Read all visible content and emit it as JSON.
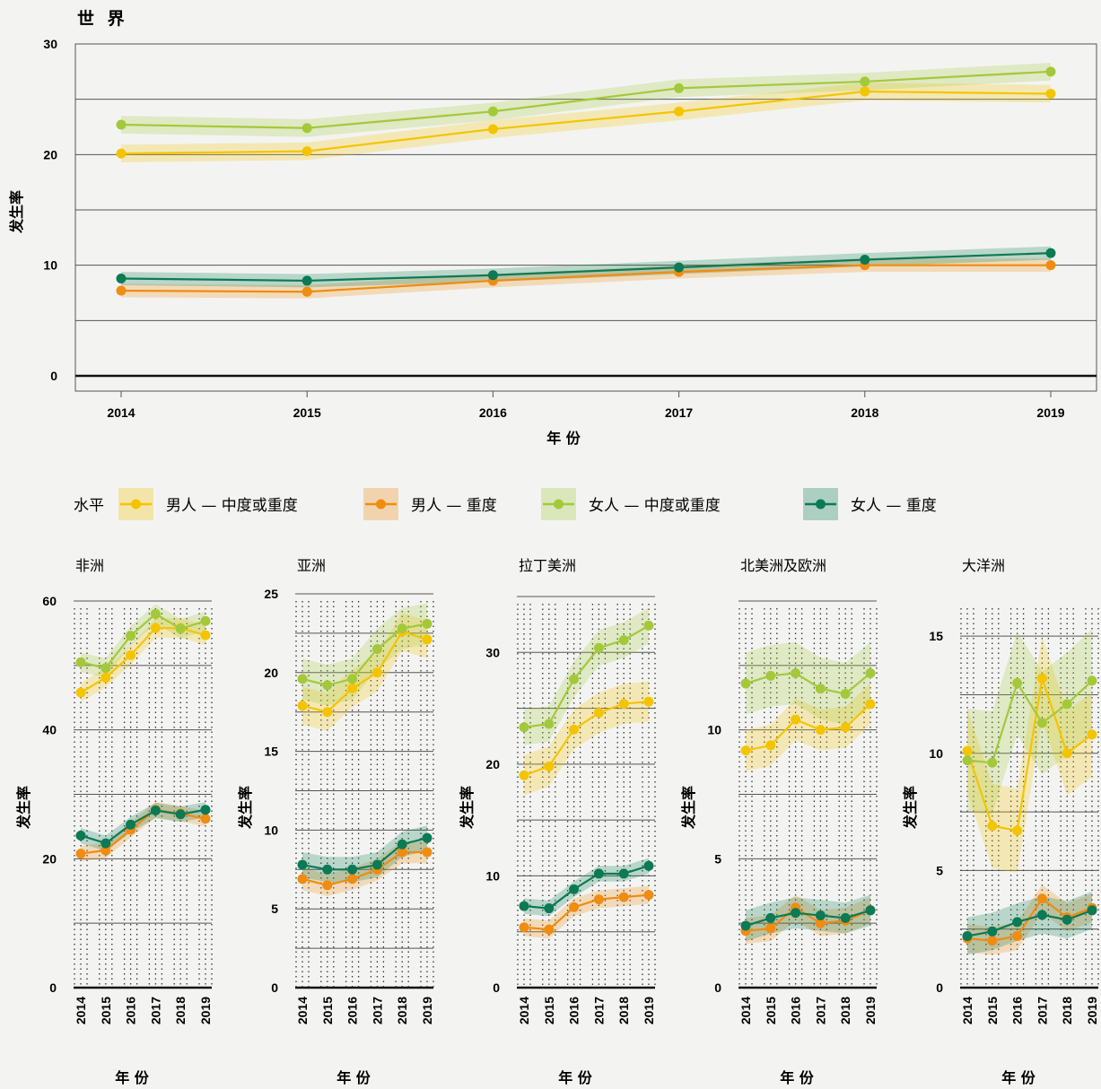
{
  "colors": {
    "men_mod": "#f5c400",
    "men_sev": "#ef8c11",
    "women_mod": "#a3c93a",
    "women_sev": "#0b7a55"
  },
  "legend": {
    "title": "水平",
    "items": [
      {
        "key": "men_mod",
        "label": "男人 — 中度或重度"
      },
      {
        "key": "men_sev",
        "label": "男人 — 重度"
      },
      {
        "key": "women_mod",
        "label": "女人 — 中度或重度"
      },
      {
        "key": "women_sev",
        "label": "女人 — 重度"
      }
    ]
  },
  "chart_data": [
    {
      "type": "line",
      "title": "世 界",
      "xlabel": "年 份",
      "ylabel": "发生率",
      "x": [
        "2014",
        "2015",
        "2016",
        "2017",
        "2018",
        "2019"
      ],
      "yticks": [
        0,
        10,
        20,
        30
      ],
      "ylim": [
        0,
        30
      ],
      "series": [
        {
          "key": "men_mod",
          "name": "男人 — 中度或重度",
          "values": [
            20.1,
            20.3,
            22.3,
            23.9,
            25.7,
            25.5
          ],
          "band": 0.8
        },
        {
          "key": "men_sev",
          "name": "男人 — 重度",
          "values": [
            7.7,
            7.6,
            8.6,
            9.4,
            10.0,
            10.0
          ],
          "band": 0.6
        },
        {
          "key": "women_mod",
          "name": "女人 — 中度或重度",
          "values": [
            22.7,
            22.4,
            23.9,
            26.0,
            26.6,
            27.5
          ],
          "band": 0.8
        },
        {
          "key": "women_sev",
          "name": "女人 — 重度",
          "values": [
            8.8,
            8.6,
            9.1,
            9.8,
            10.5,
            11.1
          ],
          "band": 0.6
        }
      ]
    },
    {
      "type": "line",
      "title": "非洲",
      "xlabel": "年 份",
      "ylabel": "发生率",
      "x": [
        "2014",
        "2015",
        "2016",
        "2017",
        "2018",
        "2019"
      ],
      "yticks": [
        0,
        20,
        40,
        60
      ],
      "ylim": [
        0,
        60
      ],
      "series": [
        {
          "key": "men_mod",
          "name": "男人 — 中度或重度",
          "values": [
            45.8,
            48.1,
            51.6,
            55.8,
            55.8,
            54.7
          ],
          "band": 1.5
        },
        {
          "key": "men_sev",
          "name": "男人 — 重度",
          "values": [
            20.8,
            21.3,
            24.5,
            27.6,
            27.0,
            26.2
          ],
          "band": 1.2
        },
        {
          "key": "women_mod",
          "name": "女人 — 中度或重度",
          "values": [
            50.5,
            49.6,
            54.6,
            58.0,
            55.7,
            56.9
          ],
          "band": 1.5
        },
        {
          "key": "women_sev",
          "name": "女人 — 重度",
          "values": [
            23.6,
            22.4,
            25.3,
            27.5,
            26.9,
            27.6
          ],
          "band": 1.2
        }
      ]
    },
    {
      "type": "line",
      "title": "亚洲",
      "xlabel": "年 份",
      "ylabel": "发生率",
      "x": [
        "2014",
        "2015",
        "2016",
        "2017",
        "2018",
        "2019"
      ],
      "yticks": [
        0,
        5,
        10,
        15,
        20,
        25
      ],
      "ylim": [
        0,
        25
      ],
      "series": [
        {
          "key": "men_mod",
          "name": "男人 — 中度或重度",
          "values": [
            17.9,
            17.5,
            19.0,
            20.0,
            22.6,
            22.1
          ],
          "band": 1.2
        },
        {
          "key": "men_sev",
          "name": "男人 — 重度",
          "values": [
            6.9,
            6.5,
            6.9,
            7.5,
            8.6,
            8.6
          ],
          "band": 0.7
        },
        {
          "key": "women_mod",
          "name": "女人 — 中度或重度",
          "values": [
            19.6,
            19.2,
            19.6,
            21.5,
            22.8,
            23.1
          ],
          "band": 1.3
        },
        {
          "key": "women_sev",
          "name": "女人 — 重度",
          "values": [
            7.8,
            7.5,
            7.5,
            7.8,
            9.1,
            9.5
          ],
          "band": 0.8
        }
      ]
    },
    {
      "type": "line",
      "title": "拉丁美洲",
      "xlabel": "年 份",
      "ylabel": "发生率",
      "x": [
        "2014",
        "2015",
        "2016",
        "2017",
        "2018",
        "2019"
      ],
      "yticks": [
        0,
        10,
        20,
        30
      ],
      "ylim": [
        0,
        35
      ],
      "series": [
        {
          "key": "men_mod",
          "name": "男人 — 中度或重度",
          "values": [
            19.0,
            19.8,
            23.1,
            24.6,
            25.4,
            25.6
          ],
          "band": 1.8
        },
        {
          "key": "men_sev",
          "name": "男人 — 重度",
          "values": [
            5.4,
            5.2,
            7.2,
            7.9,
            8.1,
            8.3
          ],
          "band": 0.8
        },
        {
          "key": "women_mod",
          "name": "女人 — 中度或重度",
          "values": [
            23.3,
            23.6,
            27.6,
            30.4,
            31.1,
            32.4
          ],
          "band": 1.6
        },
        {
          "key": "women_sev",
          "name": "女人 — 重度",
          "values": [
            7.3,
            7.1,
            8.8,
            10.2,
            10.2,
            10.9
          ],
          "band": 0.7
        }
      ]
    },
    {
      "type": "line",
      "title": "北美洲及欧洲",
      "xlabel": "年 份",
      "ylabel": "发生率",
      "x": [
        "2014",
        "2015",
        "2016",
        "2017",
        "2018",
        "2019"
      ],
      "yticks": [
        0,
        5,
        10
      ],
      "ylim": [
        0,
        15
      ],
      "series": [
        {
          "key": "men_mod",
          "name": "男人 — 中度或重度",
          "values": [
            9.2,
            9.4,
            10.4,
            10.0,
            10.1,
            11.0
          ],
          "band": 0.8
        },
        {
          "key": "men_sev",
          "name": "男人 — 重度",
          "values": [
            2.2,
            2.3,
            3.1,
            2.5,
            2.6,
            3.0
          ],
          "band": 0.5
        },
        {
          "key": "women_mod",
          "name": "女人 — 中度或重度",
          "values": [
            11.8,
            12.1,
            12.2,
            11.6,
            11.4,
            12.2
          ],
          "band": 1.2
        },
        {
          "key": "women_sev",
          "name": "女人 — 重度",
          "values": [
            2.4,
            2.7,
            2.9,
            2.8,
            2.7,
            3.0
          ],
          "band": 0.6
        }
      ]
    },
    {
      "type": "line",
      "title": "大洋洲",
      "xlabel": "年 份",
      "ylabel": "发生率",
      "x": [
        "2014",
        "2015",
        "2016",
        "2017",
        "2018",
        "2019"
      ],
      "yticks": [
        0,
        5,
        10,
        15
      ],
      "ylim": [
        0,
        16.5
      ],
      "series": [
        {
          "key": "men_mod",
          "name": "男人 — 中度或重度",
          "values": [
            10.1,
            6.9,
            6.7,
            13.2,
            10.0,
            10.8
          ],
          "band": 1.8
        },
        {
          "key": "men_sev",
          "name": "男人 — 重度",
          "values": [
            2.1,
            2.0,
            2.2,
            3.8,
            3.0,
            3.4
          ],
          "band": 0.6
        },
        {
          "key": "women_mod",
          "name": "女人 — 中度或重度",
          "values": [
            9.7,
            9.6,
            13.0,
            11.3,
            12.1,
            13.1
          ],
          "band": 2.2
        },
        {
          "key": "women_sev",
          "name": "女人 — 重度",
          "values": [
            2.2,
            2.4,
            2.8,
            3.1,
            2.9,
            3.3
          ],
          "band": 0.8
        }
      ]
    }
  ]
}
